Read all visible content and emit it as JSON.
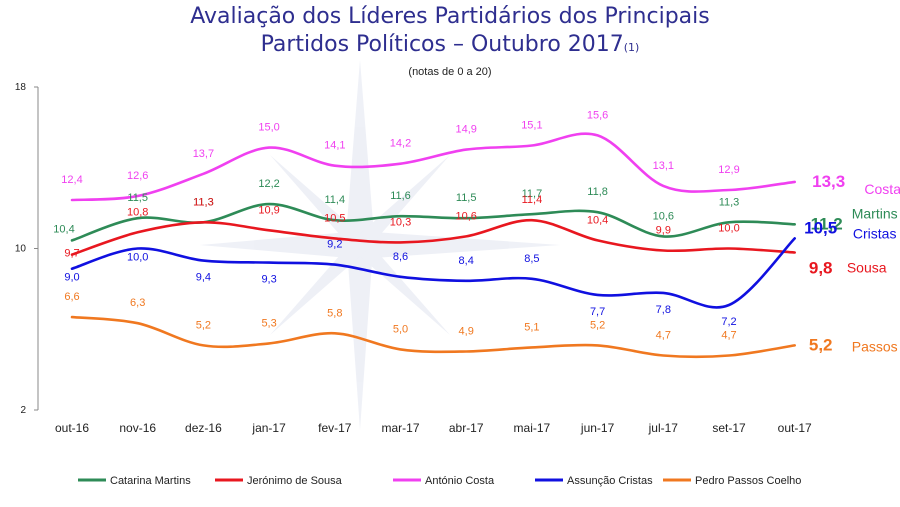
{
  "chart_data": {
    "type": "line",
    "title": "Avaliação dos Líderes Partidários dos Principais",
    "title_line2": "Partidos Políticos – Outubro 2017",
    "title_note": "(1)",
    "subtitle": "(notas de 0 a 20)",
    "xlabel": "",
    "ylabel": "",
    "ylim": [
      2,
      18
    ],
    "yticks": [
      "18",
      "10",
      "2"
    ],
    "categories": [
      "out-16",
      "nov-16",
      "dez-16",
      "jan-17",
      "fev-17",
      "mar-17",
      "abr-17",
      "mai-17",
      "jun-17",
      "jul-17",
      "set-17",
      "out-17"
    ],
    "series": [
      {
        "name": "Catarina Martins",
        "short": "Martins",
        "color": "#2e8b57",
        "values": [
          10.4,
          11.5,
          11.3,
          12.2,
          11.4,
          11.6,
          11.5,
          11.7,
          11.8,
          10.6,
          11.3,
          11.2
        ],
        "labels": [
          "10,4",
          "11,5",
          "11,3",
          "12,2",
          "11,4",
          "11,6",
          "11,5",
          "11,7",
          "11,8",
          "10,6",
          "11,3",
          "11,2"
        ]
      },
      {
        "name": "Jerónimo de Sousa",
        "short": "Sousa",
        "color": "#e8171f",
        "values": [
          9.7,
          10.8,
          11.3,
          10.9,
          10.5,
          10.3,
          10.6,
          11.4,
          10.4,
          9.9,
          10.0,
          9.8
        ],
        "labels": [
          "9,7",
          "10,8",
          "11,3",
          "10,9",
          "10,5",
          "10,3",
          "10,6",
          "11,4",
          "10,4",
          "9,9",
          "10,0",
          "9,8"
        ]
      },
      {
        "name": "António Costa",
        "short": "Costa",
        "color": "#f040f0",
        "values": [
          12.4,
          12.6,
          13.7,
          15.0,
          14.1,
          14.2,
          14.9,
          15.1,
          15.6,
          13.1,
          12.9,
          13.3
        ],
        "labels": [
          "12,4",
          "12,6",
          "13,7",
          "15,0",
          "14,1",
          "14,2",
          "14,9",
          "15,1",
          "15,6",
          "13,1",
          "12,9",
          "13,3"
        ]
      },
      {
        "name": "Assunção Cristas",
        "short": "Cristas",
        "color": "#1010e0",
        "values": [
          9.0,
          10.0,
          9.4,
          9.3,
          9.2,
          8.6,
          8.4,
          8.5,
          7.7,
          7.8,
          7.2,
          10.5
        ],
        "labels": [
          "9,0",
          "10,0",
          "9,4",
          "9,3",
          "9,2",
          "8,6",
          "8,4",
          "8,5",
          "7,7",
          "7,8",
          "7,2",
          "10,5"
        ]
      },
      {
        "name": "Pedro Passos Coelho",
        "short": "Passos",
        "color": "#f07820",
        "values": [
          6.6,
          6.3,
          5.2,
          5.3,
          5.8,
          5.0,
          4.9,
          5.1,
          5.2,
          4.7,
          4.7,
          5.2
        ],
        "labels": [
          "6,6",
          "6,3",
          "5,2",
          "5,3",
          "5,8",
          "5,0",
          "4,9",
          "5,1",
          "5,2",
          "4,7",
          "4,7",
          "5,2"
        ]
      }
    ],
    "legend_position": "bottom"
  }
}
